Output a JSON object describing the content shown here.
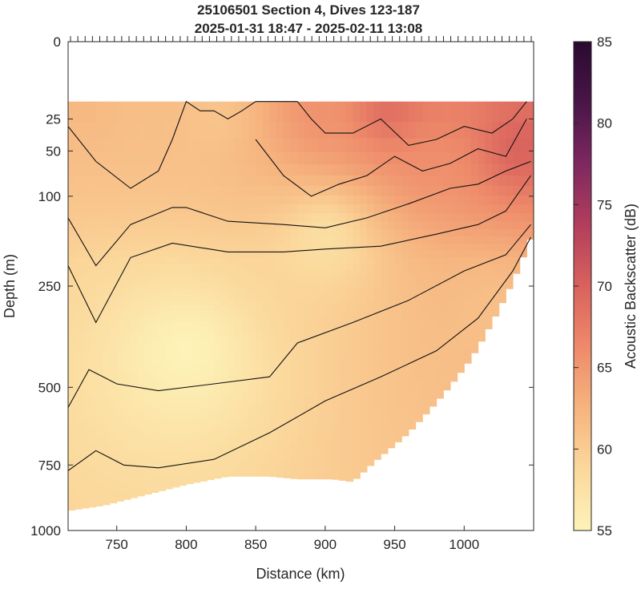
{
  "chart_data": {
    "type": "heatmap",
    "title": "25106501 Section 4, Dives 123-187",
    "subtitle": "2025-01-31 18:47 - 2025-02-11 13:08",
    "xlabel": "Distance (km)",
    "ylabel": "Depth (m)",
    "xlim": [
      715,
      1050
    ],
    "ylim": [
      0,
      1000
    ],
    "y_scale": "sqrt (non-linear, tick labels 0-1000)",
    "x_ticks": [
      750,
      800,
      850,
      900,
      950,
      1000
    ],
    "y_ticks": [
      0,
      25,
      50,
      100,
      250,
      500,
      750,
      1000
    ],
    "colorbar": {
      "label": "Acoustic Backscatter (dB)",
      "min": 55,
      "max": 85,
      "ticks": [
        55,
        60,
        65,
        70,
        75,
        80,
        85
      ],
      "colormap": [
        "#fdf3b8",
        "#fbd89c",
        "#f6b47f",
        "#ee8a6a",
        "#d9625d",
        "#b23e5c",
        "#7e2860",
        "#4a1548",
        "#2a0a2e"
      ]
    },
    "dive_marker_count": 64,
    "data_top_depth": 15,
    "bottom_profile": {
      "x": [
        715,
        740,
        770,
        800,
        830,
        860,
        880,
        905,
        920,
        935,
        960,
        985,
        1005,
        1020,
        1035,
        1048
      ],
      "depth": [
        920,
        900,
        860,
        820,
        790,
        790,
        800,
        800,
        810,
        740,
        640,
        520,
        420,
        330,
        240,
        160
      ]
    },
    "backscatter_samples": [
      {
        "x": 730,
        "depth": 20,
        "db": 62
      },
      {
        "x": 760,
        "depth": 20,
        "db": 61
      },
      {
        "x": 820,
        "depth": 20,
        "db": 60
      },
      {
        "x": 900,
        "depth": 25,
        "db": 67
      },
      {
        "x": 945,
        "depth": 20,
        "db": 72
      },
      {
        "x": 980,
        "depth": 60,
        "db": 68
      },
      {
        "x": 1040,
        "depth": 50,
        "db": 74
      },
      {
        "x": 900,
        "depth": 150,
        "db": 58
      },
      {
        "x": 800,
        "depth": 400,
        "db": 55
      },
      {
        "x": 1020,
        "depth": 300,
        "db": 64
      }
    ],
    "series": [
      {
        "x": [
          715,
          735,
          760,
          780,
          790,
          800,
          810,
          820,
          830,
          840,
          850,
          860,
          870,
          880
        ],
        "depth": [
          30,
          60,
          90,
          70,
          40,
          15,
          20,
          20,
          25,
          20,
          15,
          15,
          15,
          15
        ]
      },
      {
        "x": [
          880,
          890,
          900,
          920,
          940,
          960,
          980,
          1000,
          1020,
          1035,
          1045
        ],
        "depth": [
          15,
          25,
          35,
          35,
          25,
          45,
          40,
          30,
          35,
          25,
          15
        ]
      },
      {
        "x": [
          850,
          870,
          890,
          910,
          930,
          950,
          970,
          990,
          1010,
          1030,
          1045
        ],
        "depth": [
          40,
          75,
          100,
          85,
          75,
          55,
          70,
          62,
          48,
          55,
          25
        ]
      },
      {
        "x": [
          715,
          735,
          760,
          790,
          800,
          830,
          870,
          900,
          930,
          960,
          990,
          1010,
          1030,
          1048
        ],
        "depth": [
          130,
          210,
          140,
          115,
          115,
          135,
          140,
          145,
          130,
          110,
          90,
          85,
          70,
          60
        ]
      },
      {
        "x": [
          715,
          735,
          760,
          790,
          830,
          870,
          900,
          940,
          980,
          1010,
          1030,
          1048
        ],
        "depth": [
          210,
          330,
          195,
          170,
          185,
          185,
          180,
          175,
          155,
          140,
          120,
          75
        ]
      },
      {
        "x": [
          715,
          730,
          750,
          780,
          820,
          860,
          880,
          920,
          960,
          1000,
          1030,
          1048
        ],
        "depth": [
          560,
          450,
          490,
          510,
          490,
          470,
          380,
          330,
          280,
          220,
          190,
          140
        ]
      },
      {
        "x": [
          715,
          735,
          755,
          780,
          820,
          860,
          900,
          940,
          980,
          1010,
          1035,
          1048
        ],
        "depth": [
          770,
          700,
          750,
          760,
          730,
          640,
          540,
          470,
          400,
          320,
          220,
          160
        ]
      }
    ]
  }
}
